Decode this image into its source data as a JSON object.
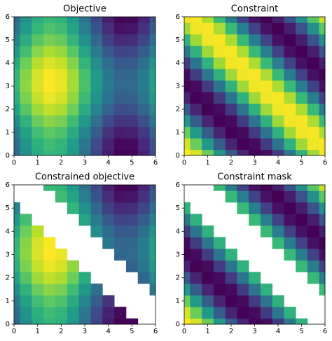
{
  "chart_data": [
    {
      "type": "contour",
      "title": "Objective",
      "colormap": "viridis",
      "x": [
        0,
        0.5,
        1,
        1.5,
        2,
        2.5,
        3,
        3.5,
        4,
        4.5,
        5,
        5.5,
        6
      ],
      "y": [
        0,
        0.5,
        1,
        1.5,
        2,
        2.5,
        3,
        3.5,
        4,
        4.5,
        5,
        5.5,
        6
      ],
      "z": [
        [
          -0.5,
          -0.02,
          0.34,
          0.5,
          0.41,
          0.1,
          -0.36,
          -0.85,
          -1.26,
          -1.48,
          -1.46,
          -1.21,
          -0.78
        ],
        [
          -0.44,
          0.04,
          0.4,
          0.56,
          0.47,
          0.16,
          -0.3,
          -0.79,
          -1.2,
          -1.42,
          -1.4,
          -1.15,
          -0.72
        ],
        [
          -0.27,
          0.21,
          0.57,
          0.73,
          0.64,
          0.33,
          -0.13,
          -0.62,
          -1.03,
          -1.25,
          -1.23,
          -0.98,
          -0.55
        ],
        [
          -0.04,
          0.44,
          0.8,
          0.96,
          0.87,
          0.56,
          0.1,
          -0.39,
          -0.8,
          -1.02,
          -1,
          -0.75,
          -0.32
        ],
        [
          0.21,
          0.69,
          1.05,
          1.21,
          1.12,
          0.81,
          0.35,
          -0.14,
          -0.55,
          -0.77,
          -0.75,
          -0.5,
          -0.07
        ],
        [
          0.4,
          0.88,
          1.24,
          1.4,
          1.31,
          1,
          0.54,
          0.05,
          -0.36,
          -0.58,
          -0.56,
          -0.31,
          0.12
        ],
        [
          0.49,
          0.97,
          1.33,
          1.49,
          1.4,
          1.09,
          0.63,
          0.14,
          -0.27,
          -0.49,
          -0.47,
          -0.22,
          0.21
        ],
        [
          0.47,
          0.95,
          1.31,
          1.47,
          1.38,
          1.07,
          0.61,
          0.12,
          -0.29,
          -0.51,
          -0.49,
          -0.24,
          0.19
        ],
        [
          0.33,
          0.81,
          1.17,
          1.33,
          1.24,
          0.93,
          0.47,
          -0.02,
          -0.43,
          -0.65,
          -0.63,
          -0.38,
          0.05
        ],
        [
          0.11,
          0.59,
          0.95,
          1.11,
          1.02,
          0.71,
          0.25,
          -0.24,
          -0.65,
          -0.87,
          -0.85,
          -0.6,
          -0.17
        ],
        [
          -0.14,
          0.34,
          0.7,
          0.86,
          0.77,
          0.46,
          0,
          -0.49,
          -0.9,
          -1.12,
          -1.1,
          -0.85,
          -0.42
        ],
        [
          -0.35,
          0.13,
          0.49,
          0.65,
          0.56,
          0.25,
          -0.21,
          -0.7,
          -1.11,
          -1.33,
          -1.31,
          -1.06,
          -0.63
        ],
        [
          -0.48,
          0,
          0.36,
          0.52,
          0.43,
          0.12,
          -0.34,
          -0.83,
          -1.24,
          -1.46,
          -1.44,
          -1.19,
          -0.76
        ]
      ],
      "xlim": [
        0,
        6
      ],
      "ylim": [
        0,
        6
      ],
      "xticks": [
        0,
        1,
        2,
        3,
        4,
        5,
        6
      ],
      "yticks": [
        0,
        1,
        2,
        3,
        4,
        5,
        6
      ]
    },
    {
      "type": "contour",
      "title": "Constraint",
      "colormap": "viridis",
      "x": [
        0,
        0.5,
        1,
        1.5,
        2,
        2.5,
        3,
        3.5,
        4,
        4.5,
        5,
        5.5,
        6
      ],
      "y": [
        0,
        0.5,
        1,
        1.5,
        2,
        2.5,
        3,
        3.5,
        4,
        4.5,
        5,
        5.5,
        6
      ],
      "z": [
        [
          1,
          0.88,
          0.54,
          0.07,
          -0.42,
          -0.8,
          -0.99,
          -0.94,
          -0.65,
          -0.21,
          0.28,
          0.71,
          0.96
        ],
        [
          0.88,
          0.54,
          0.07,
          -0.42,
          -0.8,
          -0.99,
          -0.94,
          -0.65,
          -0.21,
          0.28,
          0.71,
          0.96,
          0.98
        ],
        [
          0.54,
          0.07,
          -0.42,
          -0.8,
          -0.99,
          -0.94,
          -0.65,
          -0.21,
          0.28,
          0.71,
          0.96,
          0.98,
          0.75
        ],
        [
          0.07,
          -0.42,
          -0.8,
          -0.99,
          -0.94,
          -0.65,
          -0.21,
          0.28,
          0.71,
          0.96,
          0.98,
          0.75,
          0.35
        ],
        [
          -0.42,
          -0.8,
          -0.99,
          -0.94,
          -0.65,
          -0.21,
          0.28,
          0.71,
          0.96,
          0.98,
          0.75,
          0.35,
          -0.15
        ],
        [
          -0.8,
          -0.99,
          -0.94,
          -0.65,
          -0.21,
          0.28,
          0.71,
          0.96,
          0.98,
          0.75,
          0.35,
          -0.15,
          -0.6
        ],
        [
          -0.99,
          -0.94,
          -0.65,
          -0.21,
          0.28,
          0.71,
          0.96,
          0.98,
          0.75,
          0.35,
          -0.15,
          -0.6,
          -0.91
        ],
        [
          -0.94,
          -0.65,
          -0.21,
          0.28,
          0.71,
          0.96,
          0.98,
          0.75,
          0.35,
          -0.15,
          -0.6,
          -0.91,
          -1
        ],
        [
          -0.65,
          -0.21,
          0.28,
          0.71,
          0.96,
          0.98,
          0.75,
          0.35,
          -0.15,
          -0.6,
          -0.91,
          -1,
          -0.84
        ],
        [
          -0.21,
          0.28,
          0.71,
          0.96,
          0.98,
          0.75,
          0.35,
          -0.15,
          -0.6,
          -0.91,
          -1,
          -0.84,
          -0.48
        ],
        [
          0.28,
          0.71,
          0.96,
          0.98,
          0.75,
          0.35,
          -0.15,
          -0.6,
          -0.91,
          -1,
          -0.84,
          -0.48,
          0
        ],
        [
          0.71,
          0.96,
          0.98,
          0.75,
          0.35,
          -0.15,
          -0.6,
          -0.91,
          -1,
          -0.84,
          -0.48,
          0,
          0.47
        ],
        [
          0.96,
          0.98,
          0.75,
          0.35,
          -0.15,
          -0.6,
          -0.91,
          -1,
          -0.84,
          -0.48,
          0,
          0.47,
          0.84
        ]
      ],
      "xlim": [
        0,
        6
      ],
      "ylim": [
        0,
        6
      ],
      "xticks": [
        0,
        1,
        2,
        3,
        4,
        5,
        6
      ],
      "yticks": [
        0,
        1,
        2,
        3,
        4,
        5,
        6
      ]
    },
    {
      "type": "contour",
      "title": "Constrained objective",
      "colormap": "viridis",
      "x": [
        0,
        0.5,
        1,
        1.5,
        2,
        2.5,
        3,
        3.5,
        4,
        4.5,
        5,
        5.5,
        6
      ],
      "y": [
        0,
        0.5,
        1,
        1.5,
        2,
        2.5,
        3,
        3.5,
        4,
        4.5,
        5,
        5.5,
        6
      ],
      "z": [
        [
          -0.5,
          -0.02,
          0.34,
          0.5,
          0.41,
          0.1,
          -0.36,
          -0.85,
          -1.26,
          -1.48,
          -1.46,
          null,
          null
        ],
        [
          -0.44,
          0.04,
          0.4,
          0.56,
          0.47,
          0.16,
          -0.3,
          -0.79,
          -1.2,
          -1.42,
          null,
          null,
          null
        ],
        [
          -0.27,
          0.21,
          0.57,
          0.73,
          0.64,
          0.33,
          -0.13,
          -0.62,
          -1.03,
          null,
          null,
          null,
          null
        ],
        [
          -0.04,
          0.44,
          0.8,
          0.96,
          0.87,
          0.56,
          0.1,
          -0.39,
          null,
          null,
          null,
          null,
          -0.32
        ],
        [
          0.21,
          0.69,
          1.05,
          1.21,
          1.12,
          0.81,
          0.35,
          null,
          null,
          null,
          null,
          -0.5,
          -0.07
        ],
        [
          0.4,
          0.88,
          1.24,
          1.4,
          1.31,
          1,
          null,
          null,
          null,
          null,
          -0.56,
          -0.31,
          0.12
        ],
        [
          0.49,
          0.97,
          1.33,
          1.49,
          1.4,
          null,
          null,
          null,
          null,
          -0.49,
          -0.47,
          -0.22,
          0.21
        ],
        [
          0.47,
          0.95,
          1.31,
          1.47,
          null,
          null,
          null,
          null,
          -0.29,
          -0.51,
          -0.49,
          -0.24,
          0.19
        ],
        [
          0.33,
          0.81,
          1.17,
          null,
          null,
          null,
          null,
          -0.02,
          -0.43,
          -0.65,
          -0.63,
          -0.38,
          0.05
        ],
        [
          0.11,
          0.59,
          null,
          null,
          null,
          null,
          0.25,
          -0.24,
          -0.65,
          -0.87,
          -0.85,
          -0.6,
          -0.17
        ],
        [
          -0.14,
          null,
          null,
          null,
          null,
          0.46,
          0,
          -0.49,
          -0.9,
          -1.12,
          -1.1,
          -0.85,
          -0.42
        ],
        [
          null,
          null,
          null,
          null,
          0.56,
          0.25,
          -0.21,
          -0.7,
          -1.11,
          -1.33,
          -1.31,
          -1.06,
          -0.63
        ],
        [
          null,
          null,
          null,
          0.52,
          0.43,
          0.12,
          -0.34,
          -0.83,
          -1.24,
          -1.46,
          -1.44,
          -1.19,
          -0.76
        ]
      ],
      "xlim": [
        0,
        6
      ],
      "ylim": [
        0,
        6
      ],
      "xticks": [
        0,
        1,
        2,
        3,
        4,
        5,
        6
      ],
      "yticks": [
        0,
        1,
        2,
        3,
        4,
        5,
        6
      ]
    },
    {
      "type": "contour",
      "title": "Constraint mask",
      "colormap": "viridis",
      "x": [
        0,
        0.5,
        1,
        1.5,
        2,
        2.5,
        3,
        3.5,
        4,
        4.5,
        5,
        5.5,
        6
      ],
      "y": [
        0,
        0.5,
        1,
        1.5,
        2,
        2.5,
        3,
        3.5,
        4,
        4.5,
        5,
        5.5,
        6
      ],
      "z": [
        [
          1,
          0.88,
          0.54,
          0.07,
          -0.42,
          -0.8,
          -0.99,
          -0.94,
          -0.65,
          -0.21,
          0.28,
          null,
          null
        ],
        [
          0.88,
          0.54,
          0.07,
          -0.42,
          -0.8,
          -0.99,
          -0.94,
          -0.65,
          -0.21,
          0.28,
          null,
          null,
          null
        ],
        [
          0.54,
          0.07,
          -0.42,
          -0.8,
          -0.99,
          -0.94,
          -0.65,
          -0.21,
          0.28,
          null,
          null,
          null,
          null
        ],
        [
          0.07,
          -0.42,
          -0.8,
          -0.99,
          -0.94,
          -0.65,
          -0.21,
          0.28,
          null,
          null,
          null,
          null,
          0.35
        ],
        [
          -0.42,
          -0.8,
          -0.99,
          -0.94,
          -0.65,
          -0.21,
          0.28,
          null,
          null,
          null,
          null,
          0.35,
          -0.15
        ],
        [
          -0.8,
          -0.99,
          -0.94,
          -0.65,
          -0.21,
          0.28,
          null,
          null,
          null,
          null,
          0.35,
          -0.15,
          -0.6
        ],
        [
          -0.99,
          -0.94,
          -0.65,
          -0.21,
          0.28,
          null,
          null,
          null,
          null,
          0.35,
          -0.15,
          -0.6,
          -0.91
        ],
        [
          -0.94,
          -0.65,
          -0.21,
          0.28,
          null,
          null,
          null,
          null,
          0.35,
          -0.15,
          -0.6,
          -0.91,
          -1
        ],
        [
          -0.65,
          -0.21,
          0.28,
          null,
          null,
          null,
          null,
          0.35,
          -0.15,
          -0.6,
          -0.91,
          -1,
          -0.84
        ],
        [
          -0.21,
          0.28,
          null,
          null,
          null,
          null,
          0.35,
          -0.15,
          -0.6,
          -0.91,
          -1,
          -0.84,
          -0.48
        ],
        [
          0.28,
          null,
          null,
          null,
          null,
          0.35,
          -0.15,
          -0.6,
          -0.91,
          -1,
          -0.84,
          -0.48,
          0
        ],
        [
          null,
          null,
          null,
          null,
          0.35,
          -0.15,
          -0.6,
          -0.91,
          -1,
          -0.84,
          -0.48,
          0,
          0.47
        ],
        [
          null,
          null,
          null,
          0.35,
          -0.15,
          -0.6,
          -0.91,
          -1,
          -0.84,
          -0.48,
          0,
          0.47,
          0.84
        ]
      ],
      "xlim": [
        0,
        6
      ],
      "ylim": [
        0,
        6
      ],
      "xticks": [
        0,
        1,
        2,
        3,
        4,
        5,
        6
      ],
      "yticks": [
        0,
        1,
        2,
        3,
        4,
        5,
        6
      ]
    }
  ]
}
